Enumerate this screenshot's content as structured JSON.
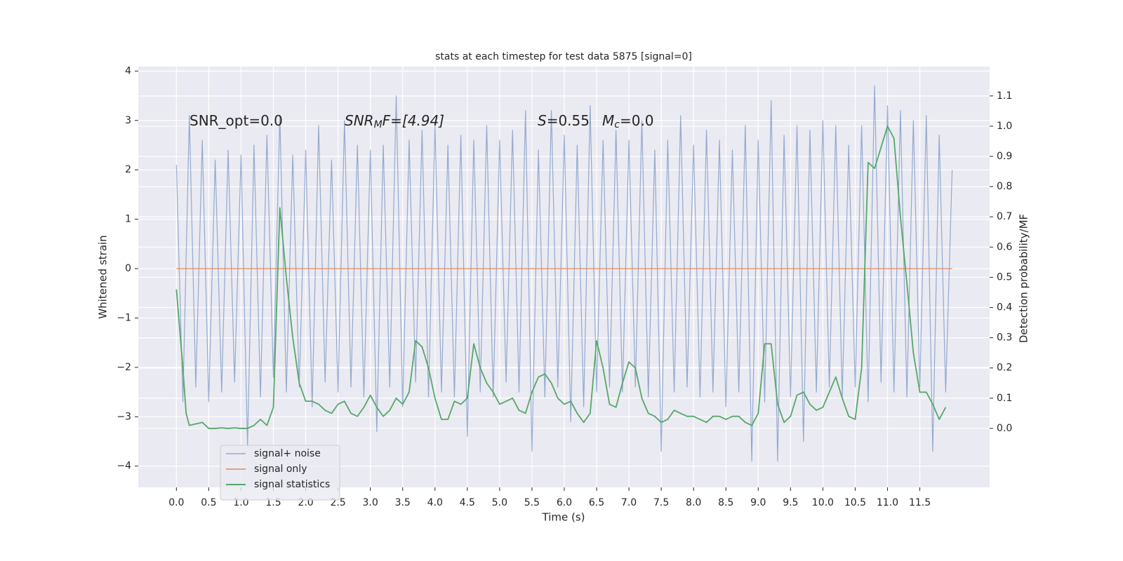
{
  "chart_data": {
    "type": "line",
    "title": "stats at each timestep for test data 5875 [signal=0]",
    "xlabel": "Time (s)",
    "ylabel": "Whitened strain",
    "y2label": "Detection probability/MF",
    "grid": true,
    "legend": "lower left",
    "xlim": [
      -0.59,
      12.58
    ],
    "ylim": [
      -4.43,
      4.09
    ],
    "y2lim": [
      -0.195,
      1.197
    ],
    "xticks": [
      {
        "value": 0,
        "label": "0.0"
      },
      0.5,
      {
        "value": 1,
        "label": "1.0"
      },
      1.5,
      {
        "value": 2,
        "label": "2.0"
      },
      2.5,
      {
        "value": 3,
        "label": "3.0"
      },
      3.5,
      {
        "value": 4,
        "label": "4.0"
      },
      4.5,
      {
        "value": 5,
        "label": "5.0"
      },
      5.5,
      {
        "value": 6,
        "label": "6.0"
      },
      6.5,
      {
        "value": 7,
        "label": "7.0"
      },
      7.5,
      {
        "value": 8,
        "label": "8.0"
      },
      8.5,
      {
        "value": 9,
        "label": "9.0"
      },
      9.5,
      {
        "value": 10,
        "label": "10.0"
      },
      10.5,
      {
        "value": 11,
        "label": "11.0"
      },
      11.5
    ],
    "yticks": [
      {
        "value": -4,
        "label": "−4"
      },
      {
        "value": -3,
        "label": "−3"
      },
      {
        "value": -2,
        "label": "−2"
      },
      {
        "value": -1,
        "label": "−1"
      },
      0,
      1,
      2,
      3,
      4
    ],
    "y2ticks": [
      {
        "value": 0,
        "label": "0.0"
      },
      0.1,
      0.2,
      0.3,
      0.4,
      0.5,
      0.6,
      0.7,
      0.8,
      0.9,
      {
        "value": 1,
        "label": "1.0"
      },
      1.1
    ],
    "annotations": [
      [
        "SNR_opt=0.0"
      ],
      [
        "SNR",
        "M",
        "F=[4.94]"
      ],
      [
        "S",
        "=0.55"
      ],
      [
        "M",
        "c",
        "=0.0"
      ]
    ],
    "series": [
      {
        "name": "signal+ noise",
        "color": "#4c72b0",
        "x": [
          0,
          0.1,
          0.2,
          0.3,
          0.4,
          0.5,
          0.6,
          0.7,
          0.8,
          0.9,
          1,
          1.1,
          1.2,
          1.3,
          1.4,
          1.5,
          1.6,
          1.7,
          1.8,
          1.9,
          2,
          2.1,
          2.2,
          2.3,
          2.4,
          2.5,
          2.6,
          2.7,
          2.8,
          2.9,
          3,
          3.1,
          3.2,
          3.3,
          3.4,
          3.5,
          3.6,
          3.7,
          3.8,
          3.9,
          4,
          4.1,
          4.2,
          4.3,
          4.4,
          4.5,
          4.6,
          4.7,
          4.8,
          4.9,
          5,
          5.1,
          5.2,
          5.3,
          5.4,
          5.5,
          5.6,
          5.7,
          5.8,
          5.9,
          6,
          6.1,
          6.2,
          6.3,
          6.4,
          6.5,
          6.6,
          6.7,
          6.8,
          6.9,
          7,
          7.1,
          7.2,
          7.3,
          7.4,
          7.5,
          7.6,
          7.7,
          7.8,
          7.9,
          8,
          8.1,
          8.2,
          8.3,
          8.4,
          8.5,
          8.6,
          8.7,
          8.8,
          8.9,
          9,
          9.1,
          9.2,
          9.3,
          9.4,
          9.5,
          9.6,
          9.7,
          9.8,
          9.9,
          10,
          10.1,
          10.2,
          10.3,
          10.4,
          10.5,
          10.6,
          10.7,
          10.8,
          10.9,
          11,
          11.1,
          11.2,
          11.3,
          11.4,
          11.5,
          11.6,
          11.7,
          11.8,
          11.9,
          12
        ],
        "values": [
          2.1,
          -2.7,
          3.1,
          -2.4,
          2.6,
          -2.7,
          2.2,
          -2.5,
          2.4,
          -2.3,
          2.3,
          -3.6,
          2.5,
          -2.6,
          2.7,
          -2.2,
          3.1,
          -2.5,
          2.3,
          -2.4,
          2.4,
          -2.8,
          2.9,
          -2.3,
          2.2,
          -2.5,
          3.0,
          -2.4,
          2.5,
          -2.6,
          2.4,
          -3.3,
          2.5,
          -2.4,
          3.5,
          -2.8,
          2.6,
          -2.3,
          2.8,
          -2.6,
          2.9,
          -2.5,
          2.5,
          -2.6,
          2.7,
          -3.4,
          2.6,
          -2.5,
          2.9,
          -2.6,
          2.6,
          -2.3,
          2.8,
          -2.5,
          3.2,
          -3.7,
          2.4,
          -2.6,
          3.2,
          -2.4,
          2.7,
          -3.1,
          2.5,
          -2.8,
          3.3,
          -2.5,
          2.6,
          -2.4,
          2.8,
          -2.5,
          2.6,
          -2.4,
          3.0,
          -2.6,
          2.4,
          -3.7,
          2.6,
          -2.5,
          3.1,
          -2.4,
          2.5,
          -2.6,
          2.8,
          -2.5,
          2.6,
          -2.8,
          2.4,
          -2.5,
          2.9,
          -3.9,
          2.6,
          -2.7,
          3.4,
          -3.9,
          2.7,
          -2.6,
          2.9,
          -3.5,
          2.8,
          -2.5,
          3.0,
          -2.4,
          2.9,
          -2.6,
          2.5,
          -2.4,
          2.9,
          -2.7,
          3.7,
          -2.3,
          3.3,
          -2.5,
          3.2,
          -2.6,
          3.0,
          -2.4,
          3.1,
          -3.7,
          2.7,
          -2.5,
          2.0
        ]
      },
      {
        "name": "signal only",
        "color": "#dd8452",
        "x": [
          0,
          12
        ],
        "values": [
          0,
          0
        ]
      },
      {
        "name": "signal statistics",
        "color": "#55a868",
        "axis": "y2",
        "x": [
          0,
          0.1,
          0.15,
          0.2,
          0.3,
          0.4,
          0.5,
          0.6,
          0.7,
          0.8,
          0.9,
          1,
          1.1,
          1.2,
          1.3,
          1.4,
          1.5,
          1.6,
          1.7,
          1.8,
          1.9,
          2,
          2.1,
          2.2,
          2.3,
          2.4,
          2.5,
          2.6,
          2.7,
          2.8,
          2.9,
          3,
          3.1,
          3.2,
          3.3,
          3.4,
          3.5,
          3.6,
          3.7,
          3.8,
          3.9,
          4,
          4.1,
          4.2,
          4.3,
          4.4,
          4.5,
          4.6,
          4.7,
          4.8,
          4.9,
          5,
          5.1,
          5.2,
          5.3,
          5.4,
          5.5,
          5.6,
          5.7,
          5.8,
          5.9,
          6,
          6.1,
          6.2,
          6.3,
          6.4,
          6.5,
          6.6,
          6.7,
          6.8,
          6.9,
          7,
          7.1,
          7.2,
          7.3,
          7.4,
          7.5,
          7.6,
          7.7,
          7.8,
          7.9,
          8,
          8.1,
          8.2,
          8.3,
          8.4,
          8.5,
          8.6,
          8.7,
          8.8,
          8.9,
          9,
          9.1,
          9.2,
          9.3,
          9.4,
          9.5,
          9.6,
          9.7,
          9.8,
          9.9,
          10,
          10.1,
          10.2,
          10.3,
          10.4,
          10.5,
          10.6,
          10.7,
          10.8,
          10.9,
          11,
          11.1,
          11.2,
          11.3,
          11.4,
          11.5,
          11.6,
          11.7,
          11.8,
          11.9
        ],
        "values": [
          0.46,
          0.2,
          0.05,
          0.01,
          0.015,
          0.02,
          0.0,
          0.0,
          0.002,
          0.0,
          0.002,
          0.0,
          0.0,
          0.01,
          0.03,
          0.01,
          0.07,
          0.73,
          0.5,
          0.3,
          0.15,
          0.09,
          0.09,
          0.08,
          0.06,
          0.05,
          0.08,
          0.09,
          0.05,
          0.04,
          0.07,
          0.11,
          0.07,
          0.04,
          0.06,
          0.1,
          0.08,
          0.12,
          0.29,
          0.27,
          0.2,
          0.1,
          0.03,
          0.03,
          0.09,
          0.08,
          0.1,
          0.28,
          0.2,
          0.15,
          0.12,
          0.08,
          0.09,
          0.1,
          0.06,
          0.05,
          0.12,
          0.17,
          0.18,
          0.15,
          0.1,
          0.08,
          0.09,
          0.05,
          0.02,
          0.05,
          0.29,
          0.2,
          0.08,
          0.07,
          0.15,
          0.22,
          0.2,
          0.1,
          0.05,
          0.04,
          0.02,
          0.03,
          0.06,
          0.05,
          0.04,
          0.04,
          0.03,
          0.02,
          0.04,
          0.04,
          0.03,
          0.04,
          0.04,
          0.02,
          0.01,
          0.05,
          0.28,
          0.28,
          0.08,
          0.02,
          0.04,
          0.11,
          0.12,
          0.08,
          0.06,
          0.07,
          0.12,
          0.17,
          0.1,
          0.04,
          0.03,
          0.2,
          0.88,
          0.86,
          0.93,
          1.0,
          0.96,
          0.7,
          0.48,
          0.25,
          0.12,
          0.12,
          0.08,
          0.03,
          0.07
        ]
      }
    ]
  }
}
